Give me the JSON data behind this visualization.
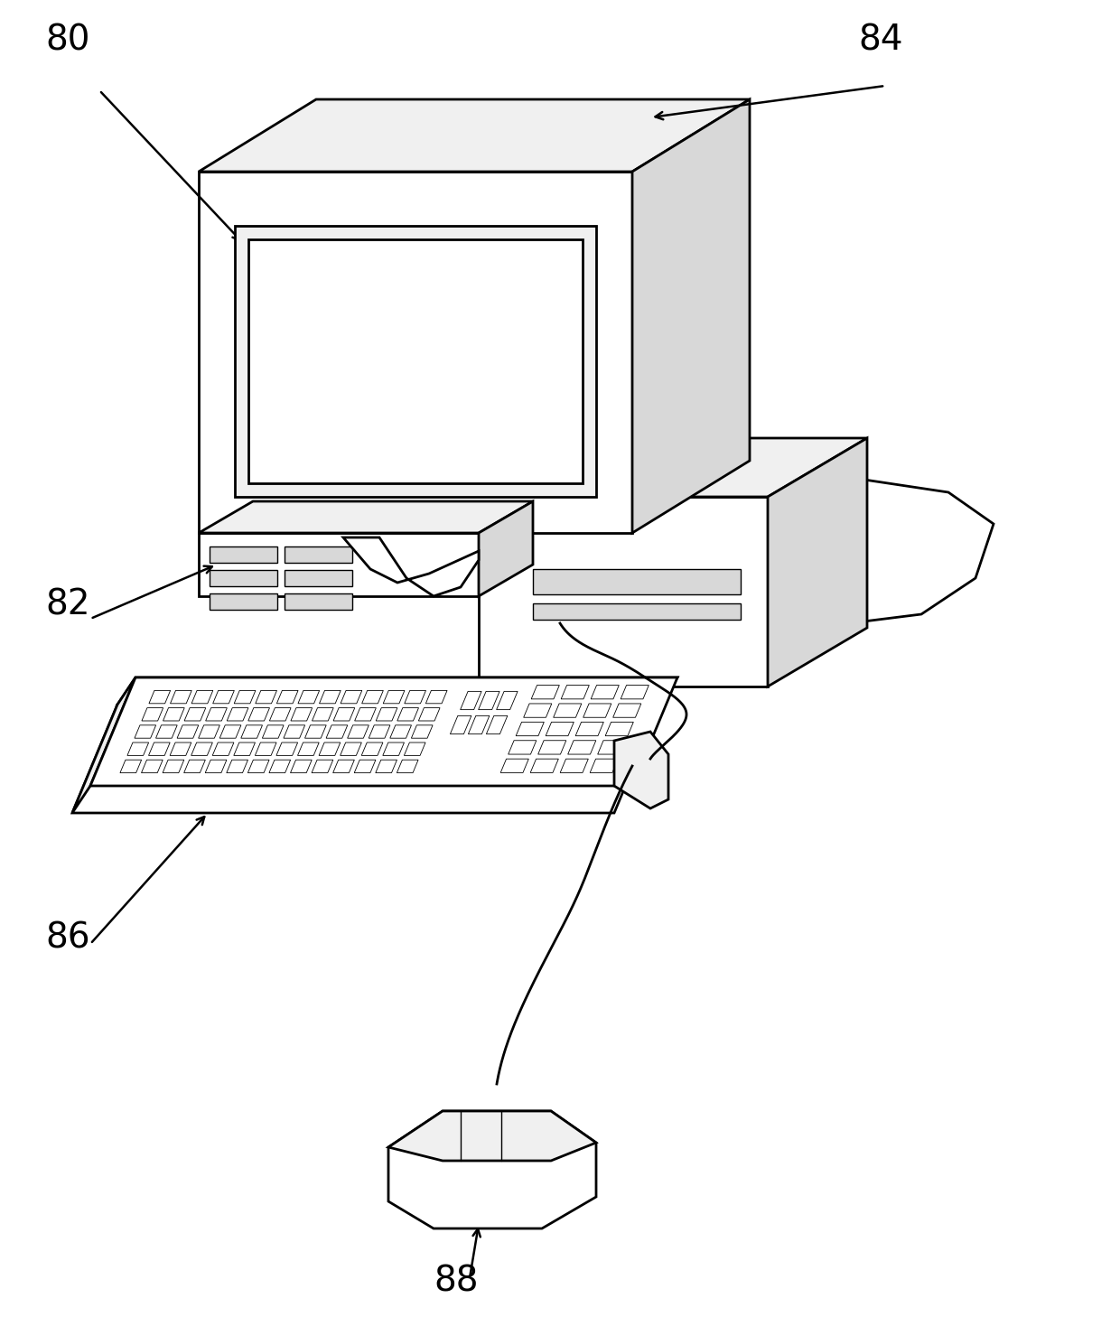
{
  "bg": "#ffffff",
  "lc": "#000000",
  "lw": 2.0,
  "lw_thin": 1.0,
  "fill_white": "#ffffff",
  "fill_light": "#f0f0f0",
  "fill_mid": "#d8d8d8",
  "fill_dark": "#b8b8b8"
}
